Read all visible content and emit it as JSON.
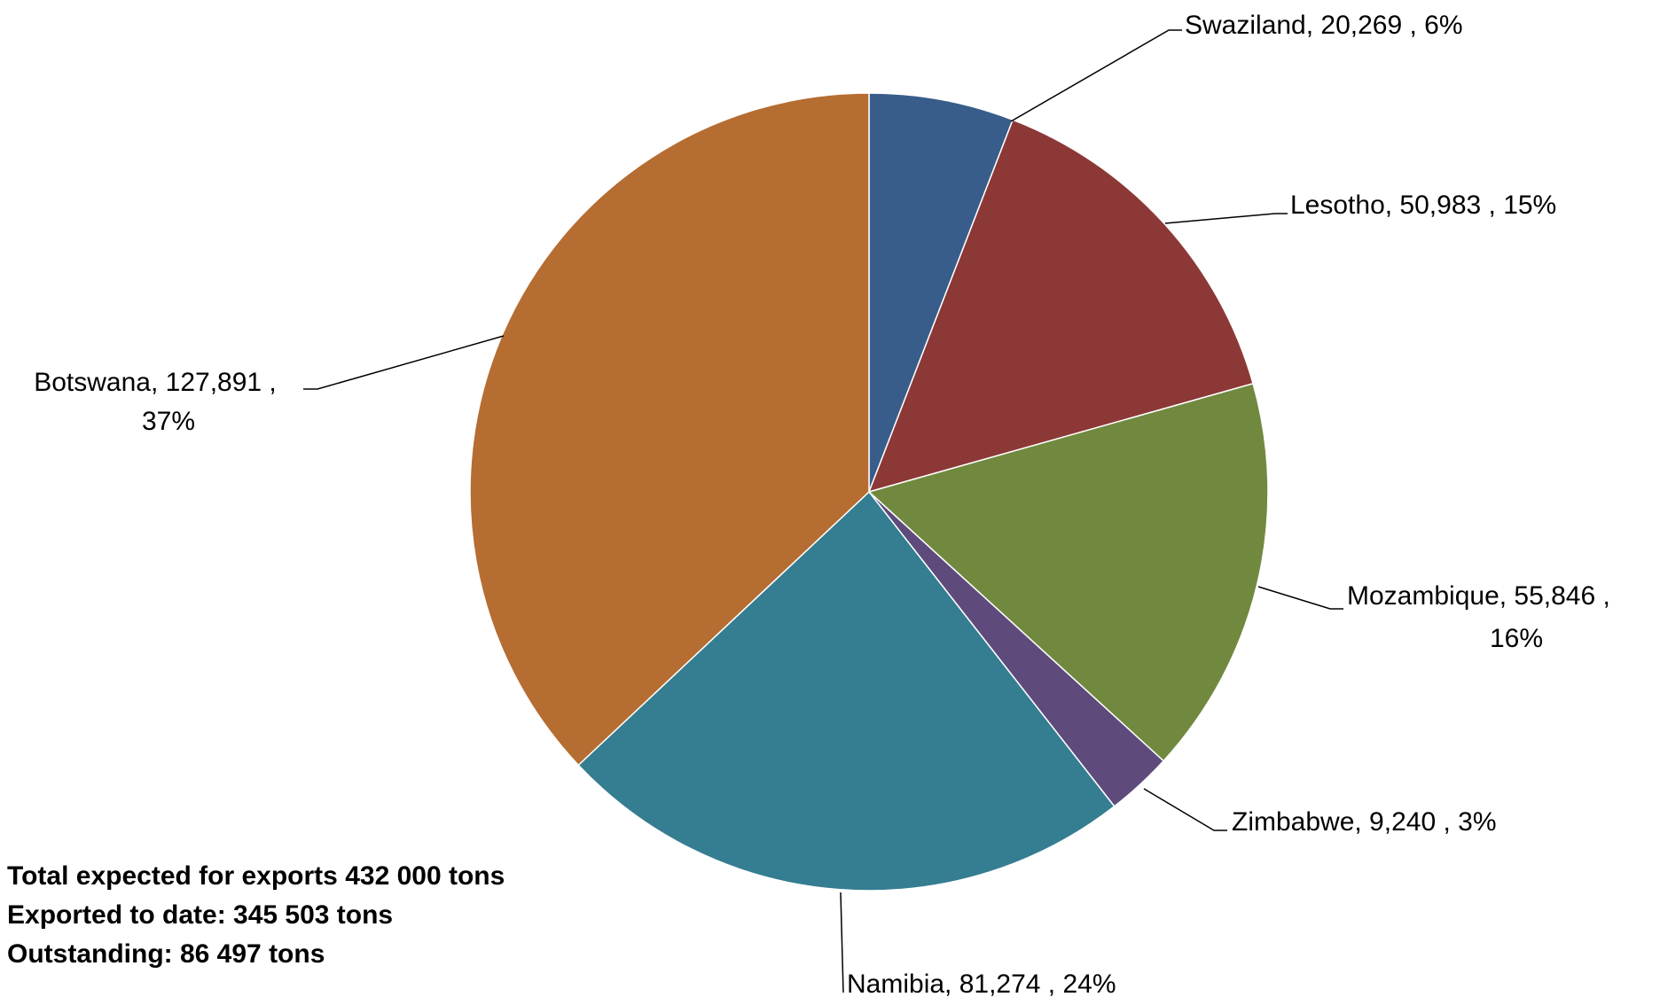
{
  "chart_data": {
    "type": "pie",
    "start_angle_deg": 0,
    "direction": "clockwise",
    "slices": [
      {
        "name": "Swaziland",
        "value": 20269,
        "value_label": "20,269",
        "percent_label": "6%",
        "color": "#385D8A"
      },
      {
        "name": "Lesotho",
        "value": 50983,
        "value_label": "50,983",
        "percent_label": "15%",
        "color": "#8C3836"
      },
      {
        "name": "Mozambique",
        "value": 55846,
        "value_label": "55,846",
        "percent_label": "16%",
        "color": "#71893F"
      },
      {
        "name": "Zimbabwe",
        "value": 9240,
        "value_label": "9,240",
        "percent_label": "3%",
        "color": "#5E4B7C"
      },
      {
        "name": "Namibia",
        "value": 81274,
        "value_label": "81,274",
        "percent_label": "24%",
        "color": "#357D91"
      },
      {
        "name": "Botswana",
        "value": 127891,
        "value_label": "127,891",
        "percent_label": "37%",
        "color": "#B66D31"
      }
    ],
    "data_labels": [
      {
        "lines": [
          "Swaziland,  20,269 , 6%"
        ]
      },
      {
        "lines": [
          "Lesotho,  50,983 , 15%"
        ]
      },
      {
        "lines": [
          "Mozambique,  55,846 ,",
          "16%"
        ]
      },
      {
        "lines": [
          "Zimbabwe,  9,240 , 3%"
        ]
      },
      {
        "lines": [
          "Namibia,  81,274 , 24%"
        ]
      },
      {
        "lines": [
          "Botswana,  127,891 ,",
          "37%"
        ]
      }
    ]
  },
  "notes": {
    "total": "Total expected for exports 432 000 tons",
    "exported": "Exported to date: 345 503 tons",
    "outstanding": "Outstanding: 86 497 tons"
  }
}
